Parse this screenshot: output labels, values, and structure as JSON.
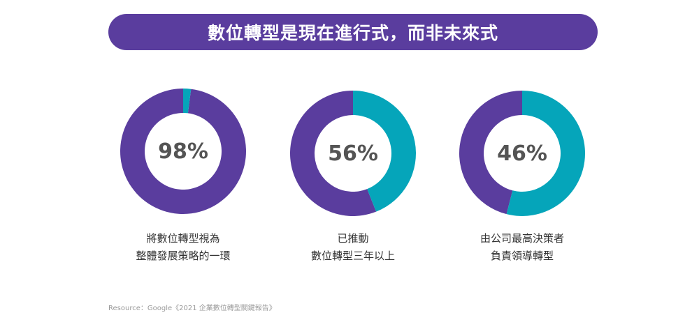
{
  "banner": {
    "title": "數位轉型是現在進行式，而非未來式"
  },
  "colors": {
    "primary": "#5a3d9e",
    "accent": "#05a5ba",
    "text": "#545454"
  },
  "chart_data": [
    {
      "type": "pie",
      "values": [
        98,
        2
      ],
      "series": [
        {
          "values": [
            98,
            2
          ]
        }
      ],
      "center_label": "98%",
      "caption": [
        "將數位轉型視為",
        "整體發展策略的一環"
      ]
    },
    {
      "type": "pie",
      "values": [
        56,
        44
      ],
      "series": [
        {
          "values": [
            56,
            44
          ]
        }
      ],
      "center_label": "56%",
      "caption": [
        "已推動",
        "數位轉型三年以上"
      ]
    },
    {
      "type": "pie",
      "values": [
        46,
        54
      ],
      "series": [
        {
          "values": [
            46,
            54
          ]
        }
      ],
      "center_label": "46%",
      "caption": [
        "由公司最高決策者",
        "負責領導轉型"
      ]
    }
  ],
  "source": "Resource：Google《2021 企業數位轉型關鍵報告》"
}
